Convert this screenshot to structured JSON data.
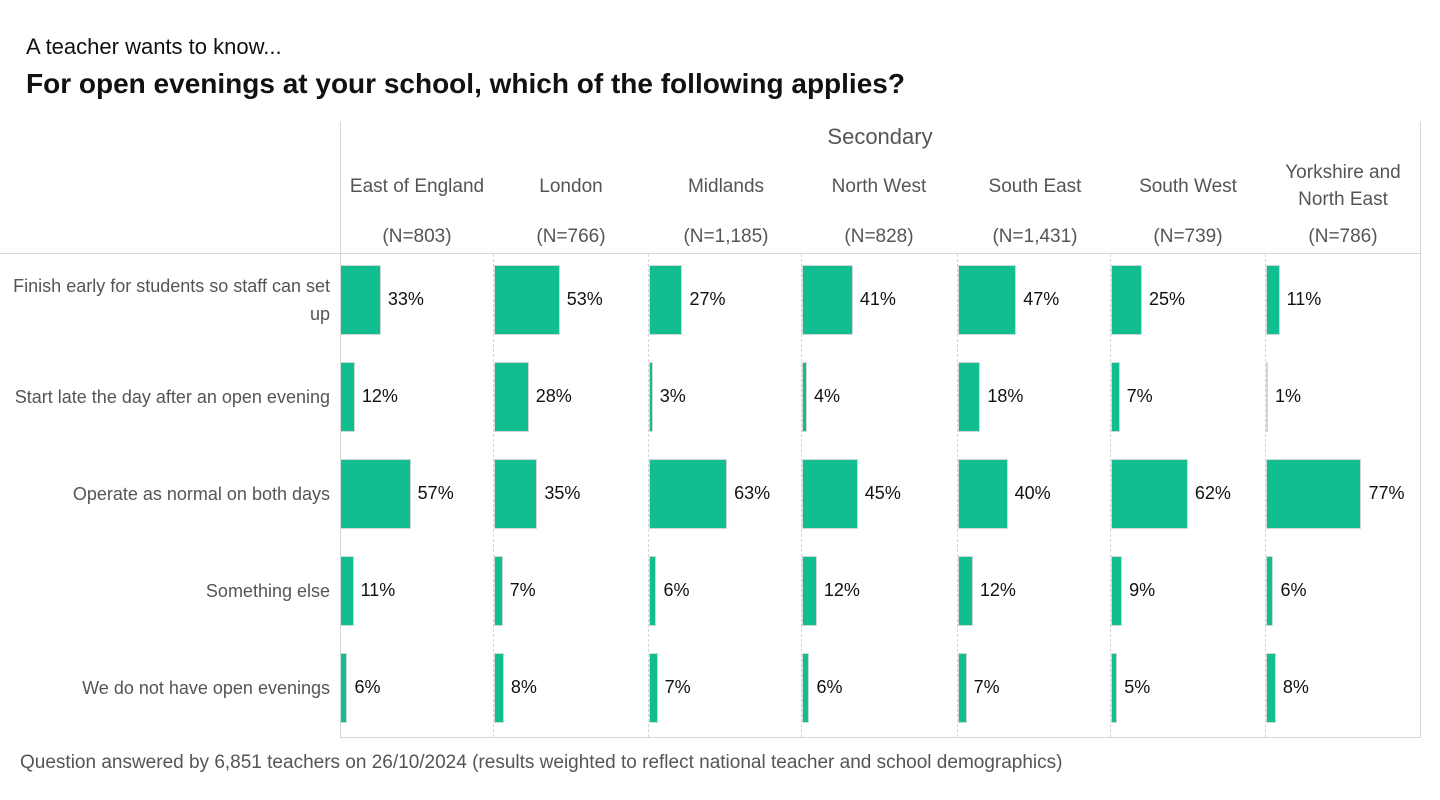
{
  "subtitle": "A teacher wants to know...",
  "title": "For open evenings at your school, which of the following applies?",
  "footer": "Question answered by 6,851 teachers on 26/10/2024 (results weighted to reflect national teacher and school demographics)",
  "colors": {
    "bar": "#12be8f"
  },
  "chart_data": {
    "type": "bar",
    "orientation": "horizontal",
    "group": "Secondary",
    "columns": [
      {
        "name": "East of England",
        "n": "(N=803)"
      },
      {
        "name": "London",
        "n": "(N=766)"
      },
      {
        "name": "Midlands",
        "n": "(N=1,185)"
      },
      {
        "name": "North West",
        "n": "(N=828)"
      },
      {
        "name": "South East",
        "n": "(N=1,431)"
      },
      {
        "name": "South West",
        "n": "(N=739)"
      },
      {
        "name": "Yorkshire and North East",
        "n": "(N=786)"
      }
    ],
    "categories": [
      "Finish early for students so staff can set up",
      "Start late the day after an open evening",
      "Operate as normal on both days",
      "Something else",
      "We do not have open evenings"
    ],
    "values": [
      [
        33,
        53,
        27,
        41,
        47,
        25,
        11
      ],
      [
        12,
        28,
        3,
        4,
        18,
        7,
        1
      ],
      [
        57,
        35,
        63,
        45,
        40,
        62,
        77
      ],
      [
        11,
        7,
        6,
        12,
        12,
        9,
        6
      ],
      [
        6,
        8,
        7,
        6,
        7,
        5,
        8
      ]
    ],
    "labels": [
      [
        "33%",
        "53%",
        "27%",
        "41%",
        "47%",
        "25%",
        "11%"
      ],
      [
        "12%",
        "28%",
        "3%",
        "4%",
        "18%",
        "7%",
        "1%"
      ],
      [
        "57%",
        "35%",
        "63%",
        "45%",
        "40%",
        "62%",
        "77%"
      ],
      [
        "11%",
        "7%",
        "6%",
        "12%",
        "12%",
        "9%",
        "6%"
      ],
      [
        "6%",
        "8%",
        "7%",
        "6%",
        "7%",
        "5%",
        "8%"
      ]
    ],
    "unit": "%",
    "xlim": [
      0,
      100
    ]
  }
}
